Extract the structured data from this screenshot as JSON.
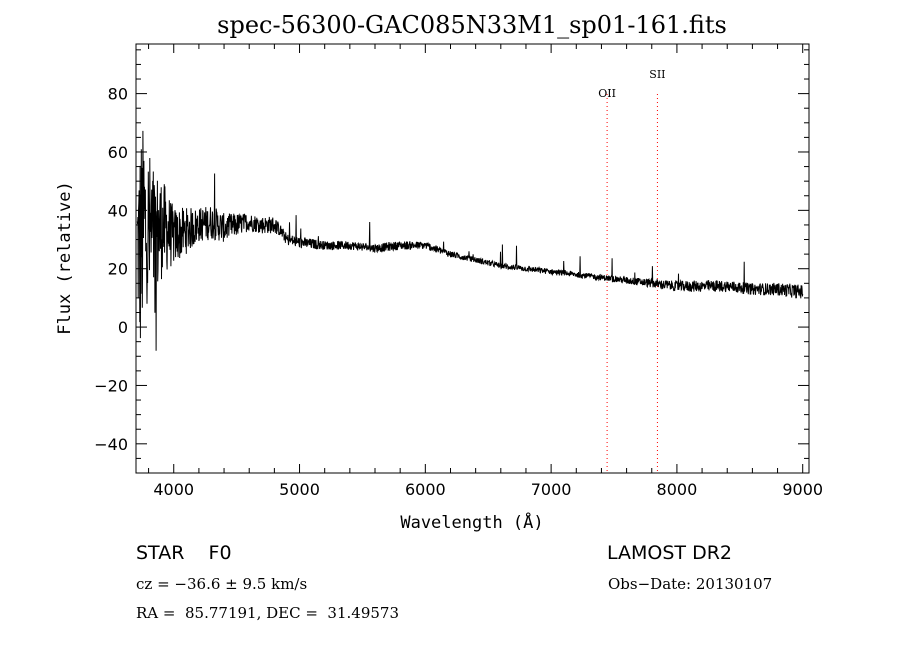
{
  "chart_data": {
    "type": "line",
    "title": "spec-56300-GAC085N33M1_sp01-161.fits",
    "xlabel": "Wavelength (Å)",
    "ylabel": "Flux (relative)",
    "xlim": [
      3700,
      9050
    ],
    "ylim": [
      -50,
      97
    ],
    "xticks": [
      4000,
      5000,
      6000,
      7000,
      8000,
      9000
    ],
    "yticks": [
      -40,
      -20,
      0,
      20,
      40,
      60,
      80
    ],
    "grid": false,
    "line_color": "#000000",
    "series": [
      {
        "x": [
          3710,
          3730,
          3760,
          3800,
          3850,
          3900,
          3950,
          4000,
          4100,
          4200,
          4300,
          4400,
          4500,
          4600,
          4700,
          4800,
          4850,
          4900,
          5000,
          5200,
          5400,
          5600,
          5800,
          6000,
          6200,
          6300,
          6400,
          6600,
          6800,
          7000,
          7200,
          7400,
          7600,
          7800,
          8000,
          8200,
          8400,
          8600,
          8800,
          9000
        ],
        "y": [
          30,
          25,
          35,
          32,
          30,
          34,
          33,
          31,
          33,
          35,
          36,
          34,
          35,
          36,
          35,
          35,
          33,
          30,
          29,
          28,
          28,
          27,
          28,
          28,
          25,
          24,
          23,
          21,
          20,
          19,
          18,
          17,
          16,
          15,
          14,
          14,
          14,
          13,
          13,
          12
        ],
        "noise": [
          20,
          40,
          35,
          30,
          25,
          18,
          14,
          10,
          8,
          6,
          6,
          5,
          4,
          3,
          3,
          3,
          2,
          2,
          2,
          1.5,
          1.5,
          1.5,
          1.5,
          1.3,
          1.2,
          1,
          1,
          1,
          1,
          1,
          1,
          1,
          1.2,
          1.5,
          1.8,
          2,
          2,
          2,
          2.2,
          2.5
        ]
      }
    ],
    "vlines": [
      {
        "name": "OII",
        "x": 7445,
        "color": "#ff0000"
      },
      {
        "name": "SII",
        "x": 7845,
        "color": "#ff0000"
      }
    ]
  },
  "info": {
    "class_line": "STAR    F0",
    "survey": "LAMOST DR2",
    "cz": "cz = −36.6 ± 9.5 km/s",
    "obs_date": "Obs−Date: 20130107",
    "coords": "RA =  85.77191, DEC =  31.49573"
  }
}
